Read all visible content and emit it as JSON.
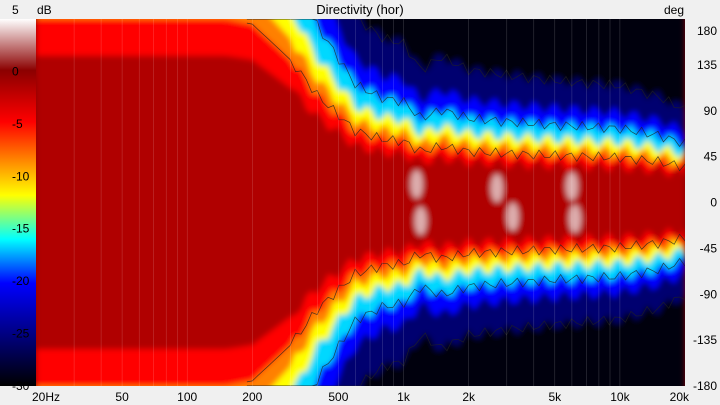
{
  "chart_data": {
    "type": "heatmap",
    "title": "Directivity (hor)",
    "colorbar": {
      "unit": "dB",
      "range": [
        -30,
        5
      ],
      "ticks": [
        5,
        0,
        -5,
        -10,
        -15,
        -20,
        -25,
        -30
      ],
      "colors": [
        "#ffffff",
        "#8b0000",
        "#ff0000",
        "#ff8000",
        "#ffff00",
        "#00ffff",
        "#0000ff",
        "#000080",
        "#000000"
      ]
    },
    "x_axis": {
      "scale": "log",
      "range": [
        20,
        20000
      ],
      "ticks": [
        {
          "value": 20,
          "label": "20Hz"
        },
        {
          "value": 50,
          "label": "50"
        },
        {
          "value": 100,
          "label": "100"
        },
        {
          "value": 200,
          "label": "200"
        },
        {
          "value": 500,
          "label": "500"
        },
        {
          "value": 1000,
          "label": "1k"
        },
        {
          "value": 2000,
          "label": "2k"
        },
        {
          "value": 5000,
          "label": "5k"
        },
        {
          "value": 10000,
          "label": "10k"
        },
        {
          "value": 20000,
          "label": "20k"
        }
      ]
    },
    "y_axis": {
      "unit": "deg",
      "range": [
        -180,
        180
      ],
      "ticks": [
        180,
        135,
        90,
        45,
        0,
        -45,
        -90,
        -135,
        -180
      ]
    },
    "beamwidth_contour": {
      "description_values": "approximate -6 dB beam edge in degrees vs frequency",
      "freq": [
        20,
        150,
        200,
        300,
        400,
        600,
        800,
        1000,
        1200,
        1500,
        2000,
        3000,
        5000,
        10000,
        15000,
        20000
      ],
      "deg": [
        180,
        180,
        175,
        140,
        105,
        70,
        62,
        60,
        50,
        55,
        50,
        48,
        46,
        44,
        40,
        35
      ]
    }
  }
}
